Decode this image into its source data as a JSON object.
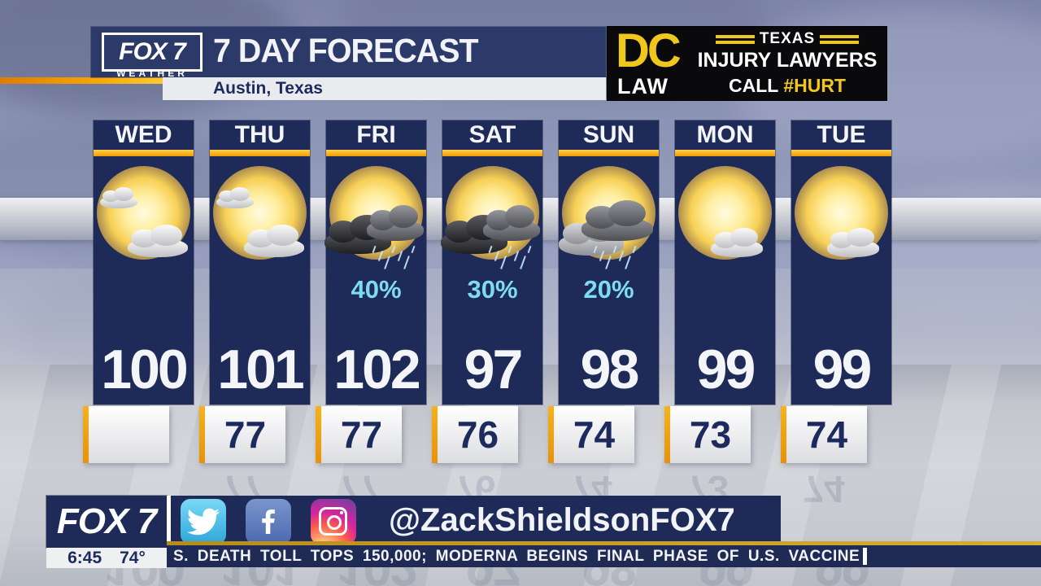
{
  "header": {
    "station": "FOX 7",
    "station_sub": "WEATHER",
    "title": "7 DAY FORECAST",
    "location": "Austin, Texas"
  },
  "ad": {
    "brand_top": "DC",
    "brand_bottom": "LAW",
    "line1": "TEXAS",
    "line2": "INJURY LAWYERS",
    "line3_prefix": "CALL",
    "line3_highlight": "#HURT"
  },
  "forecast": {
    "days": [
      {
        "name": "WED",
        "icon": "mostly-sunny",
        "precip": "",
        "high": "100",
        "low": ""
      },
      {
        "name": "THU",
        "icon": "mostly-sunny",
        "precip": "",
        "high": "101",
        "low": "77"
      },
      {
        "name": "FRI",
        "icon": "storm-rain",
        "precip": "40%",
        "high": "102",
        "low": "77"
      },
      {
        "name": "SAT",
        "icon": "storm-rain",
        "precip": "30%",
        "high": "97",
        "low": "76"
      },
      {
        "name": "SUN",
        "icon": "rain",
        "precip": "20%",
        "high": "98",
        "low": "74"
      },
      {
        "name": "MON",
        "icon": "partly-cloudy",
        "precip": "",
        "high": "99",
        "low": "73"
      },
      {
        "name": "TUE",
        "icon": "partly-cloudy",
        "precip": "",
        "high": "99",
        "low": "74"
      }
    ]
  },
  "footer": {
    "station": "FOX 7",
    "time": "6:45",
    "temp": "74°",
    "social_icons": [
      "twitter-icon",
      "facebook-icon",
      "instagram-icon"
    ],
    "social_handle": "@ZackShieldsonFOX7",
    "ticker": "S. DEATH TOLL TOPS 150,000; MODERNA BEGINS FINAL PHASE OF U.S. VACCINE"
  },
  "colors": {
    "navy": "#1e2b58",
    "header_navy": "#2b3a69",
    "accent_gold": "#f0a500",
    "precip_cyan": "#7ddcf0",
    "ad_yellow": "#f0c71d",
    "ticker_navy": "#1f2a55"
  }
}
